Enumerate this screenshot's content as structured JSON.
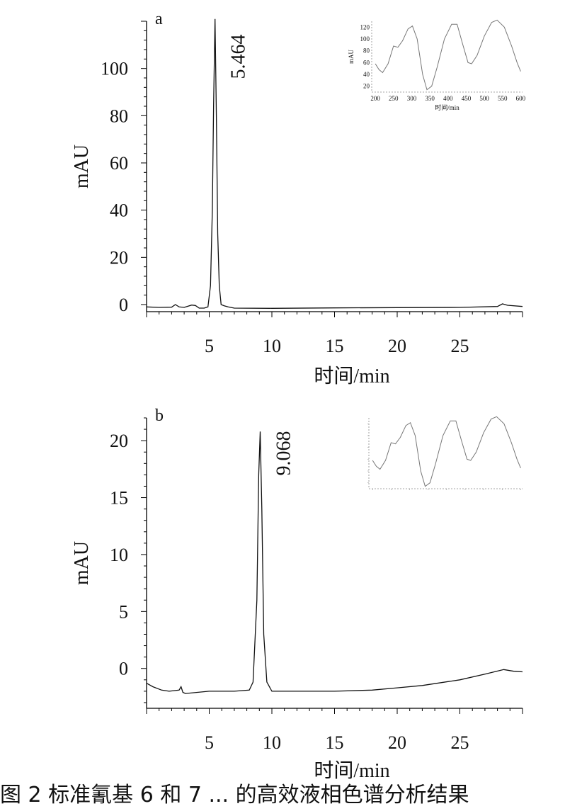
{
  "caption": "图 2 标准氰基 6 和 7 ... 的高效液相色谱分析结果",
  "chart_data": [
    {
      "panel_label": "a",
      "type": "line",
      "ylabel": "mAU",
      "xlabel": "时间/min",
      "xlim": [
        0,
        30
      ],
      "ylim": [
        -3,
        120
      ],
      "xticks": [
        5,
        10,
        15,
        20,
        25
      ],
      "yticks": [
        0,
        20,
        40,
        60,
        80,
        100
      ],
      "peak_label": "5.464",
      "series": [
        {
          "x": [
            0,
            1,
            2,
            2.3,
            2.6,
            3,
            3.6,
            3.9,
            4.2,
            4.6,
            4.9,
            5.1,
            5.25,
            5.35,
            5.464,
            5.57,
            5.68,
            5.8,
            5.95,
            6.2,
            6.5,
            7,
            10,
            15,
            20,
            25,
            28,
            28.4,
            28.8,
            30
          ],
          "y": [
            -1,
            -1.2,
            -1.1,
            0,
            -1,
            -1.2,
            -0.2,
            -0.4,
            -1.5,
            -1.5,
            -1,
            8,
            40,
            85,
            121,
            80,
            30,
            8,
            0,
            -0.5,
            -1,
            -1.5,
            -1.6,
            -1.4,
            -1.3,
            -1.2,
            -0.8,
            0.3,
            -0.3,
            -0.8
          ]
        }
      ],
      "inset": {
        "type": "line",
        "ylabel": "mAU",
        "xlabel": "时间/min",
        "xticks": [
          200,
          250,
          300,
          350,
          400,
          450,
          500,
          550,
          600
        ],
        "yticks": [
          20,
          40,
          60,
          80,
          100,
          120
        ],
        "xlim": [
          190,
          605
        ],
        "ylim": [
          10,
          130
        ],
        "x": [
          200,
          210,
          220,
          235,
          250,
          262,
          275,
          290,
          302,
          315,
          330,
          342,
          355,
          370,
          390,
          410,
          425,
          440,
          455,
          465,
          480,
          500,
          520,
          535,
          555,
          575,
          590,
          600
        ],
        "y": [
          58,
          48,
          43,
          58,
          88,
          86,
          97,
          117,
          122,
          100,
          40,
          14,
          20,
          52,
          100,
          125,
          125,
          92,
          60,
          58,
          72,
          105,
          128,
          132,
          120,
          88,
          60,
          45
        ]
      }
    },
    {
      "panel_label": "b",
      "type": "line",
      "ylabel": "mAU",
      "xlabel": "时间/min",
      "xlim": [
        0,
        30
      ],
      "ylim": [
        -3.5,
        22
      ],
      "xticks": [
        5,
        10,
        15,
        20,
        25
      ],
      "yticks": [
        0,
        5,
        10,
        15,
        20
      ],
      "peak_label": "9.068",
      "series": [
        {
          "x": [
            0,
            0.5,
            1.2,
            1.8,
            2.6,
            2.75,
            2.9,
            3.1,
            5,
            7,
            8.2,
            8.5,
            8.8,
            8.95,
            9.068,
            9.2,
            9.35,
            9.6,
            10,
            12,
            15,
            18,
            20,
            22,
            25,
            27,
            28.5,
            29.3,
            30
          ],
          "y": [
            -1.3,
            -1.6,
            -1.9,
            -2.0,
            -1.9,
            -1.6,
            -2.1,
            -2.2,
            -2.0,
            -2.0,
            -1.9,
            -1.2,
            6,
            17,
            20.8,
            14,
            3,
            -1.2,
            -2.0,
            -2.0,
            -2.0,
            -1.9,
            -1.7,
            -1.5,
            -1.0,
            -0.5,
            -0.1,
            -0.25,
            -0.3
          ]
        }
      ],
      "inset": {
        "type": "line",
        "ylabel": "",
        "xlabel": "",
        "xticks": [],
        "yticks": [],
        "xlim": [
          190,
          605
        ],
        "ylim": [
          10,
          130
        ],
        "x": [
          200,
          210,
          220,
          235,
          250,
          262,
          275,
          290,
          302,
          315,
          330,
          342,
          355,
          370,
          390,
          410,
          425,
          440,
          455,
          465,
          480,
          500,
          520,
          535,
          555,
          575,
          590,
          600
        ],
        "y": [
          58,
          48,
          43,
          58,
          88,
          86,
          97,
          117,
          122,
          100,
          40,
          14,
          20,
          52,
          100,
          125,
          125,
          92,
          60,
          58,
          72,
          105,
          128,
          132,
          120,
          88,
          60,
          45
        ]
      }
    }
  ]
}
